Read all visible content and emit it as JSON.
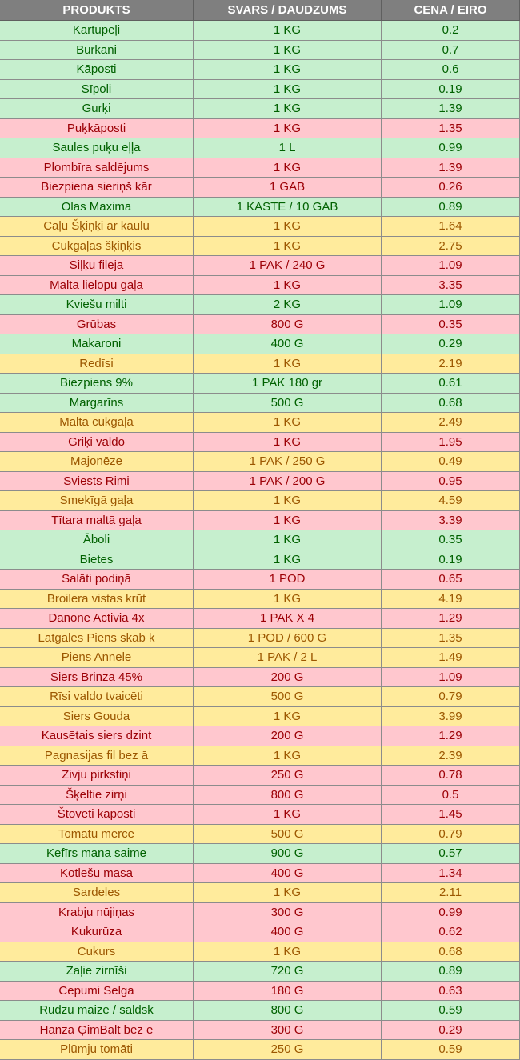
{
  "colors": {
    "green_bg": "#c6efce",
    "green_text": "#006100",
    "red_bg": "#ffc7ce",
    "red_text": "#9c0006",
    "yellow_bg": "#ffeb9c",
    "yellow_text": "#9c5700",
    "header_bg": "#7f7f7f"
  },
  "headers": [
    "PRODUKTS",
    "SVARS / DAUDZUMS",
    "CENA / EIRO"
  ],
  "rows": [
    {
      "product": "Kartupeļi",
      "qty": "1 KG",
      "price": "0.2",
      "color": "green"
    },
    {
      "product": "Burkāni",
      "qty": "1 KG",
      "price": "0.7",
      "color": "green"
    },
    {
      "product": "Kāposti",
      "qty": "1 KG",
      "price": "0.6",
      "color": "green"
    },
    {
      "product": "Sīpoli",
      "qty": "1 KG",
      "price": "0.19",
      "color": "green"
    },
    {
      "product": "Gurķi",
      "qty": "1 KG",
      "price": "1.39",
      "color": "green"
    },
    {
      "product": "Puķkāposti",
      "qty": "1 KG",
      "price": "1.35",
      "color": "red"
    },
    {
      "product": "Saules puķu eļļa",
      "qty": "1 L",
      "price": "0.99",
      "color": "green"
    },
    {
      "product": "Plombīra saldējums",
      "qty": "1 KG",
      "price": "1.39",
      "color": "red"
    },
    {
      "product": "Biezpiena sieriņš kār",
      "qty": "1 GAB",
      "price": "0.26",
      "color": "red"
    },
    {
      "product": "Olas Maxima",
      "qty": "1 KASTE / 10 GAB",
      "price": "0.89",
      "color": "green"
    },
    {
      "product": "Cāļu Šķiņķi ar kaulu",
      "qty": "1 KG",
      "price": "1.64",
      "color": "yellow"
    },
    {
      "product": "Cūkgaļas šķiņķis",
      "qty": "1 KG",
      "price": "2.75",
      "color": "yellow"
    },
    {
      "product": "Siļķu fileja",
      "qty": "1 PAK / 240 G",
      "price": "1.09",
      "color": "red"
    },
    {
      "product": "Malta lielopu gaļa",
      "qty": "1 KG",
      "price": "3.35",
      "color": "red"
    },
    {
      "product": "Kviešu milti",
      "qty": "2 KG",
      "price": "1.09",
      "color": "green"
    },
    {
      "product": "Grūbas",
      "qty": "800 G",
      "price": "0.35",
      "color": "red"
    },
    {
      "product": "Makaroni",
      "qty": "400 G",
      "price": "0.29",
      "color": "green"
    },
    {
      "product": "Redīsi",
      "qty": "1 KG",
      "price": "2.19",
      "color": "yellow"
    },
    {
      "product": "Biezpiens 9%",
      "qty": "1 PAK 180 gr",
      "price": "0.61",
      "color": "green"
    },
    {
      "product": "Margarīns",
      "qty": "500 G",
      "price": "0.68",
      "color": "green"
    },
    {
      "product": "Malta cūkgaļa",
      "qty": "1 KG",
      "price": "2.49",
      "color": "yellow"
    },
    {
      "product": "Griķi valdo",
      "qty": "1 KG",
      "price": "1.95",
      "color": "red"
    },
    {
      "product": "Majonēze",
      "qty": "1 PAK / 250 G",
      "price": "0.49",
      "color": "yellow"
    },
    {
      "product": "Sviests Rimi",
      "qty": "1 PAK / 200 G",
      "price": "0.95",
      "color": "red"
    },
    {
      "product": "Smekīgā gaļa",
      "qty": "1 KG",
      "price": "4.59",
      "color": "yellow"
    },
    {
      "product": "Tītara maltā gaļa",
      "qty": "1 KG",
      "price": "3.39",
      "color": "red"
    },
    {
      "product": "Āboli",
      "qty": "1 KG",
      "price": "0.35",
      "color": "green"
    },
    {
      "product": "Bietes",
      "qty": "1 KG",
      "price": "0.19",
      "color": "green"
    },
    {
      "product": "Salāti podiņā",
      "qty": "1 POD",
      "price": "0.65",
      "color": "red"
    },
    {
      "product": "Broilera vistas krūt",
      "qty": "1 KG",
      "price": "4.19",
      "color": "yellow"
    },
    {
      "product": "Danone Activia 4x",
      "qty": "1 PAK X 4",
      "price": "1.29",
      "color": "red"
    },
    {
      "product": "Latgales Piens skāb k",
      "qty": "1 POD / 600 G",
      "price": "1.35",
      "color": "yellow"
    },
    {
      "product": "Piens Annele",
      "qty": "1 PAK / 2 L",
      "price": "1.49",
      "color": "yellow"
    },
    {
      "product": "Siers Brinza 45%",
      "qty": "200 G",
      "price": "1.09",
      "color": "red"
    },
    {
      "product": "Rīsi valdo tvaicēti",
      "qty": "500 G",
      "price": "0.79",
      "color": "yellow"
    },
    {
      "product": "Siers Gouda",
      "qty": "1 KG",
      "price": "3.99",
      "color": "yellow"
    },
    {
      "product": "Kausētais siers dzint",
      "qty": "200 G",
      "price": "1.29",
      "color": "red"
    },
    {
      "product": "Pagnasijas fil bez ā",
      "qty": "1 KG",
      "price": "2.39",
      "color": "yellow"
    },
    {
      "product": "Zivju pirkstiņi",
      "qty": "250 G",
      "price": "0.78",
      "color": "red"
    },
    {
      "product": "Šķeltie zirņi",
      "qty": "800 G",
      "price": "0.5",
      "color": "red"
    },
    {
      "product": "Štovēti kāposti",
      "qty": "1 KG",
      "price": "1.45",
      "color": "red"
    },
    {
      "product": "Tomātu mērce",
      "qty": "500 G",
      "price": "0.79",
      "color": "yellow"
    },
    {
      "product": "Kefīrs mana saime",
      "qty": "900 G",
      "price": "0.57",
      "color": "green"
    },
    {
      "product": "Kotlešu masa",
      "qty": "400 G",
      "price": "1.34",
      "color": "red"
    },
    {
      "product": "Sardeles",
      "qty": "1 KG",
      "price": "2.11",
      "color": "yellow"
    },
    {
      "product": "Krabju nūjiņas",
      "qty": "300 G",
      "price": "0.99",
      "color": "red"
    },
    {
      "product": "Kukurūza",
      "qty": "400 G",
      "price": "0.62",
      "color": "red"
    },
    {
      "product": "Cukurs",
      "qty": "1 KG",
      "price": "0.68",
      "color": "yellow"
    },
    {
      "product": "Zaļie zirnīši",
      "qty": "720 G",
      "price": "0.89",
      "color": "green"
    },
    {
      "product": "Cepumi Selga",
      "qty": "180 G",
      "price": "0.63",
      "color": "red"
    },
    {
      "product": "Rudzu maize / saldsk",
      "qty": "800 G",
      "price": "0.59",
      "color": "green"
    },
    {
      "product": "Hanza ĢimBalt bez e",
      "qty": "300 G",
      "price": "0.29",
      "color": "red"
    },
    {
      "product": "Plūmju tomāti",
      "qty": "250 G",
      "price": "0.59",
      "color": "yellow"
    }
  ]
}
